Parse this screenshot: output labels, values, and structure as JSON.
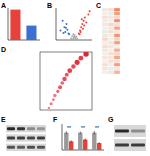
{
  "chart_data": [
    {
      "type": "bar",
      "title": "A",
      "categories": [
        null,
        null
      ],
      "values": [
        95,
        45
      ],
      "colors": [
        "#e8413c",
        "#3b6fd1"
      ],
      "ylim": [
        0,
        100
      ],
      "tick_labels": false
    },
    {
      "type": "scatter",
      "title": "B",
      "xlim": [
        -6,
        6
      ],
      "ylim": [
        0,
        10
      ],
      "tick_labels": false,
      "series": [
        {
          "color": "#3b6fd1",
          "x": [
            -4.5,
            -3.8,
            -3.2,
            -2.9,
            -2.5,
            -2.2,
            -1.8,
            -1.6,
            -3.5,
            -2.7
          ],
          "values": [
            3,
            6,
            4,
            2.5,
            5,
            3.2,
            2,
            1.8,
            2.2,
            3.8
          ]
        },
        {
          "color": "#aaaaaa",
          "x": [
            -1,
            -0.6,
            -0.3,
            0,
            0.2,
            0.5,
            0.8,
            1.1,
            -0.8,
            0.4,
            0.1,
            -0.2
          ],
          "values": [
            0.5,
            1.2,
            0.3,
            0.8,
            1.5,
            0.6,
            1,
            0.4,
            0.2,
            0.3,
            1.1,
            1.8
          ]
        },
        {
          "color": "#e8413c",
          "x": [
            1.6,
            2,
            2.4,
            2.8,
            3.2,
            3.6,
            4.1,
            4.8,
            2.2,
            3,
            1.9,
            2.6,
            3.4,
            5.2
          ],
          "values": [
            2,
            3,
            4,
            5,
            6,
            7,
            5.5,
            8,
            2.5,
            3.5,
            1.8,
            6.5,
            4.5,
            9
          ]
        }
      ]
    },
    {
      "type": "heatmap",
      "title": "C",
      "color_range": [
        -2,
        2
      ],
      "cells": [
        [
          0.2,
          0.3,
          1.5
        ],
        [
          0.1,
          -0.2,
          1.2
        ],
        [
          0.3,
          0.2,
          0.4
        ],
        [
          -0.2,
          0.1,
          1.4
        ],
        [
          0.2,
          0.4,
          0.3
        ],
        [
          0.1,
          0.2,
          1.1
        ],
        [
          -0.3,
          0.3,
          0.2
        ],
        [
          0.2,
          0.1,
          1.3
        ],
        [
          0.4,
          -0.1,
          0.5
        ],
        [
          0.1,
          0.2,
          1.2
        ],
        [
          0.3,
          0.2,
          0.1
        ],
        [
          0.2,
          0.1,
          1.0
        ],
        [
          -0.1,
          0.3,
          0.4
        ],
        [
          0.2,
          0.2,
          1.1
        ],
        [
          0.1,
          0.3,
          0.3
        ],
        [
          0.3,
          0.1,
          1.2
        ],
        [
          0.2,
          -0.2,
          0.2
        ],
        [
          0.1,
          0.2,
          0.9
        ]
      ]
    },
    {
      "type": "dot",
      "title": "D",
      "categories": [
        null,
        null,
        null,
        null,
        null,
        null,
        null,
        null,
        null,
        null,
        null,
        null,
        null,
        null
      ],
      "values": [
        0.12,
        0.15,
        0.18,
        0.2,
        0.24,
        0.27,
        0.3,
        0.33,
        0.36,
        0.4,
        0.45,
        0.5,
        0.55,
        0.62
      ],
      "sizes": [
        2,
        3,
        2,
        4,
        3,
        5,
        4,
        6,
        5,
        7,
        6,
        8,
        7,
        9
      ],
      "color_values": [
        0.2,
        0.3,
        0.4,
        0.3,
        0.5,
        0.6,
        0.5,
        0.7,
        0.6,
        0.8,
        0.7,
        0.9,
        0.8,
        1
      ],
      "color_range": [
        0,
        1
      ],
      "xlim": [
        0,
        0.7
      ],
      "tick_labels": false
    },
    {
      "type": "blot",
      "title": "E",
      "bands": [
        [
          0.9,
          0.85,
          0.4,
          0.35
        ],
        [
          0.8,
          0.8,
          0.75,
          0.8
        ],
        [
          0.7,
          0.65,
          0.7,
          0.68
        ]
      ]
    },
    {
      "type": "bar",
      "title": "F",
      "categories": [
        null,
        null,
        null
      ],
      "ylim": [
        0,
        1.5
      ],
      "tick_labels": false,
      "annotations": [
        "**",
        "**",
        "**"
      ],
      "series": [
        {
          "color": "#9a9a9a",
          "values": [
            1,
            1,
            1
          ],
          "errors": [
            0.08,
            0.07,
            0.09
          ]
        },
        {
          "color": "#e8413c",
          "values": [
            0.5,
            0.6,
            0.4
          ],
          "errors": [
            0.06,
            0.07,
            0.05
          ]
        }
      ]
    },
    {
      "type": "blot",
      "title": "G",
      "bands": [
        [
          0.9,
          0.4
        ],
        [
          0.8,
          0.8
        ]
      ]
    }
  ]
}
